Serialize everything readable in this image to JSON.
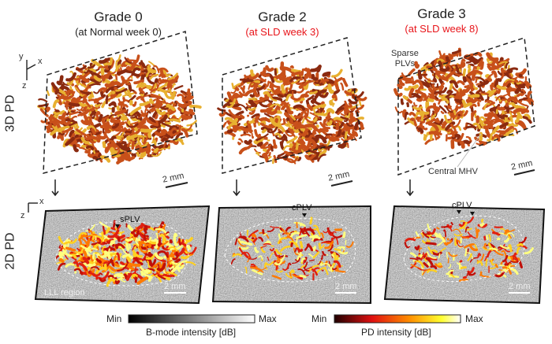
{
  "columns": [
    {
      "title": "Grade 0",
      "subtitle": "(at Normal week 0)",
      "subtitle_color": "#222222"
    },
    {
      "title": "Grade 2",
      "subtitle": "(at SLD week 3)",
      "subtitle_color": "#e8141a"
    },
    {
      "title": "Grade 3",
      "subtitle": "(at SLD week 8)",
      "subtitle_color": "#e8141a"
    }
  ],
  "rows": {
    "row1": "3D PD",
    "row2": "2D PD"
  },
  "axes": {
    "y": "y",
    "x": "x",
    "z": "z"
  },
  "annotations": {
    "scale_bar": "2 mm",
    "sparse_plvs": "Sparse\nPLVs",
    "central_mhv": "Central MHV",
    "splv": "sPLV",
    "cplv": "cPLV",
    "lll_region": "LLL region"
  },
  "colorbars": [
    {
      "min": "Min",
      "max": "Max",
      "label": "B-mode intensity [dB]",
      "colors": [
        "#000000",
        "#ffffff"
      ]
    },
    {
      "min": "Min",
      "max": "Max",
      "label": "PD intensity [dB]",
      "colors": [
        "#200000",
        "#e01010",
        "#ff9000",
        "#ffff30",
        "#ffffff"
      ]
    }
  ],
  "colors": {
    "vessel_dark": "#8a2a10",
    "vessel_mid": "#c8501a",
    "vessel_light": "#e8b030"
  }
}
